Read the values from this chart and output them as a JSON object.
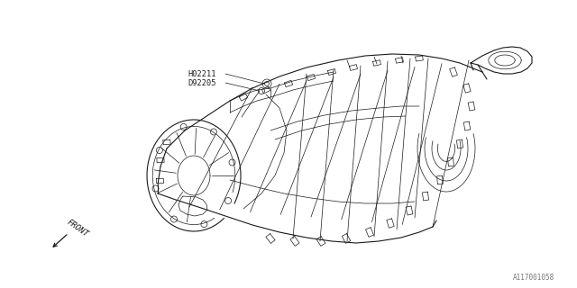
{
  "bg_color": "#ffffff",
  "line_color": "#1a1a1a",
  "label_color": "#1a1a1a",
  "part_labels": [
    "H02211",
    "D92205"
  ],
  "front_label": "FRONT",
  "diagram_id": "A117001058",
  "fig_width": 6.4,
  "fig_height": 3.2,
  "dpi": 100
}
